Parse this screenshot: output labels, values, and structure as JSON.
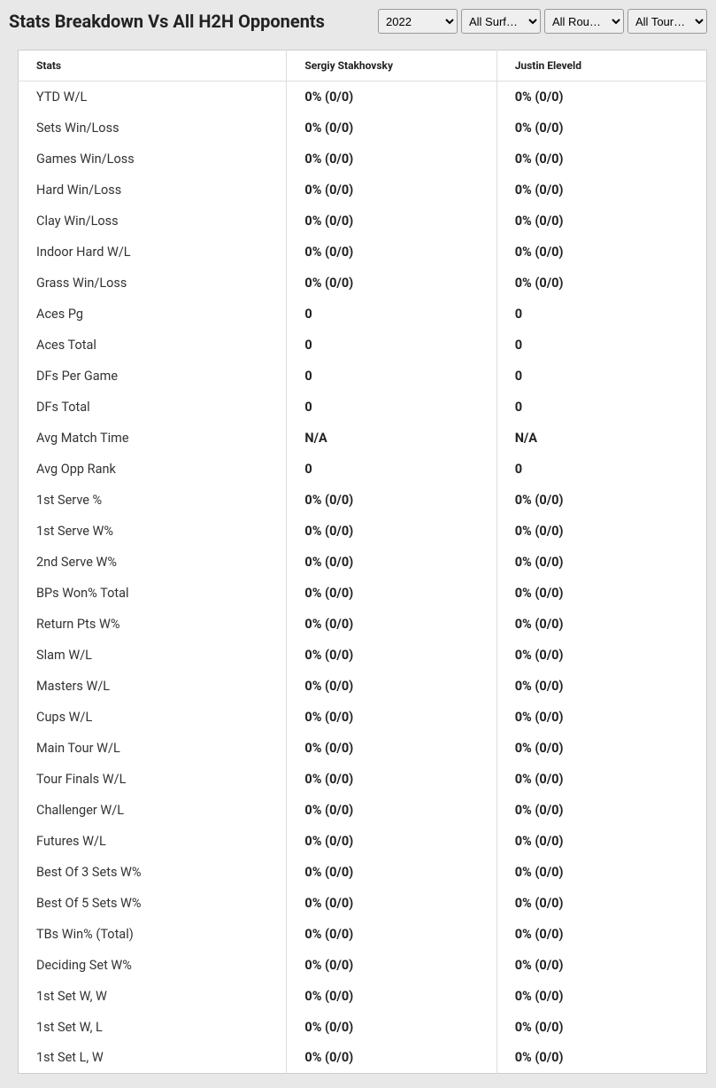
{
  "title": "Stats Breakdown Vs All H2H Opponents",
  "filters": {
    "year": {
      "selected": "2022",
      "options": [
        "2022"
      ]
    },
    "surface": {
      "selected": "All Surf…",
      "options": [
        "All Surf…"
      ]
    },
    "round": {
      "selected": "All Rou…",
      "options": [
        "All Rou…"
      ]
    },
    "tour": {
      "selected": "All Tour…",
      "options": [
        "All Tour…"
      ]
    }
  },
  "columns": {
    "stats": "Stats",
    "player1": "Sergiy Stakhovsky",
    "player2": "Justin Eleveld"
  },
  "rows": [
    {
      "label": "YTD W/L",
      "p1": "0% (0/0)",
      "p2": "0% (0/0)"
    },
    {
      "label": "Sets Win/Loss",
      "p1": "0% (0/0)",
      "p2": "0% (0/0)"
    },
    {
      "label": "Games Win/Loss",
      "p1": "0% (0/0)",
      "p2": "0% (0/0)"
    },
    {
      "label": "Hard Win/Loss",
      "p1": "0% (0/0)",
      "p2": "0% (0/0)"
    },
    {
      "label": "Clay Win/Loss",
      "p1": "0% (0/0)",
      "p2": "0% (0/0)"
    },
    {
      "label": "Indoor Hard W/L",
      "p1": "0% (0/0)",
      "p2": "0% (0/0)"
    },
    {
      "label": "Grass Win/Loss",
      "p1": "0% (0/0)",
      "p2": "0% (0/0)"
    },
    {
      "label": "Aces Pg",
      "p1": "0",
      "p2": "0"
    },
    {
      "label": "Aces Total",
      "p1": "0",
      "p2": "0"
    },
    {
      "label": "DFs Per Game",
      "p1": "0",
      "p2": "0"
    },
    {
      "label": "DFs Total",
      "p1": "0",
      "p2": "0"
    },
    {
      "label": "Avg Match Time",
      "p1": "N/A",
      "p2": "N/A"
    },
    {
      "label": "Avg Opp Rank",
      "p1": "0",
      "p2": "0"
    },
    {
      "label": "1st Serve %",
      "p1": "0% (0/0)",
      "p2": "0% (0/0)"
    },
    {
      "label": "1st Serve W%",
      "p1": "0% (0/0)",
      "p2": "0% (0/0)"
    },
    {
      "label": "2nd Serve W%",
      "p1": "0% (0/0)",
      "p2": "0% (0/0)"
    },
    {
      "label": "BPs Won% Total",
      "p1": "0% (0/0)",
      "p2": "0% (0/0)"
    },
    {
      "label": "Return Pts W%",
      "p1": "0% (0/0)",
      "p2": "0% (0/0)"
    },
    {
      "label": "Slam W/L",
      "p1": "0% (0/0)",
      "p2": "0% (0/0)"
    },
    {
      "label": "Masters W/L",
      "p1": "0% (0/0)",
      "p2": "0% (0/0)"
    },
    {
      "label": "Cups W/L",
      "p1": "0% (0/0)",
      "p2": "0% (0/0)"
    },
    {
      "label": "Main Tour W/L",
      "p1": "0% (0/0)",
      "p2": "0% (0/0)"
    },
    {
      "label": "Tour Finals W/L",
      "p1": "0% (0/0)",
      "p2": "0% (0/0)"
    },
    {
      "label": "Challenger W/L",
      "p1": "0% (0/0)",
      "p2": "0% (0/0)"
    },
    {
      "label": "Futures W/L",
      "p1": "0% (0/0)",
      "p2": "0% (0/0)"
    },
    {
      "label": "Best Of 3 Sets W%",
      "p1": "0% (0/0)",
      "p2": "0% (0/0)"
    },
    {
      "label": "Best Of 5 Sets W%",
      "p1": "0% (0/0)",
      "p2": "0% (0/0)"
    },
    {
      "label": "TBs Win% (Total)",
      "p1": "0% (0/0)",
      "p2": "0% (0/0)"
    },
    {
      "label": "Deciding Set W%",
      "p1": "0% (0/0)",
      "p2": "0% (0/0)"
    },
    {
      "label": "1st Set W, W",
      "p1": "0% (0/0)",
      "p2": "0% (0/0)"
    },
    {
      "label": "1st Set W, L",
      "p1": "0% (0/0)",
      "p2": "0% (0/0)"
    },
    {
      "label": "1st Set L, W",
      "p1": "0% (0/0)",
      "p2": "0% (0/0)"
    }
  ]
}
